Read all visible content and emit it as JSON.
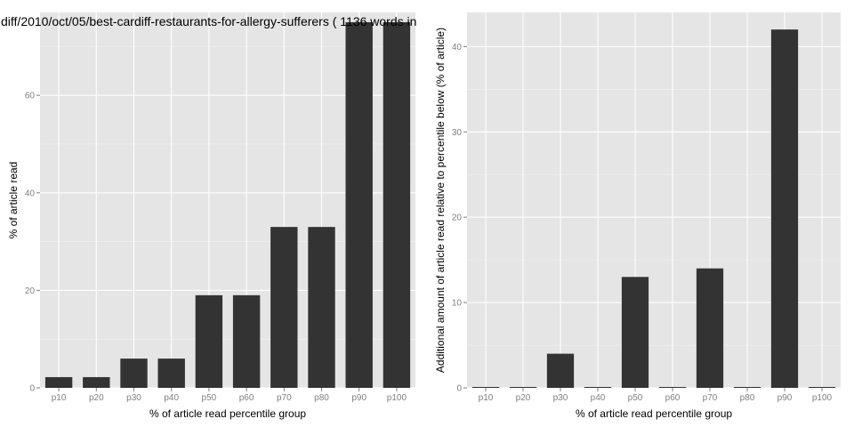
{
  "chart_data": [
    {
      "type": "bar",
      "title": "diff/2010/oct/05/best-cardiff-restaurants-for-allergy-sufferers ( 1136 words in",
      "xlabel": "% of article read percentile group",
      "ylabel": "% of article read",
      "categories": [
        "p10",
        "p20",
        "p30",
        "p40",
        "p50",
        "p60",
        "p70",
        "p80",
        "p90",
        "p100"
      ],
      "values": [
        2.2,
        2.2,
        6,
        6,
        19,
        19,
        33,
        33,
        75,
        75
      ],
      "ylim": [
        0,
        77
      ],
      "yticks": [
        0,
        20,
        40,
        60
      ],
      "grid": true,
      "bar_color": "#333333",
      "panel_color": "#e5e5e5"
    },
    {
      "type": "bar",
      "title": "",
      "xlabel": "% of article read percentile group",
      "ylabel": "Additional amount of article read relative to percentile below (% of article)",
      "categories": [
        "p10",
        "p20",
        "p30",
        "p40",
        "p50",
        "p60",
        "p70",
        "p80",
        "p90",
        "p100"
      ],
      "values": [
        0,
        0,
        4,
        0,
        13,
        0,
        14,
        0,
        42,
        0
      ],
      "ylim": [
        0,
        44
      ],
      "yticks": [
        0,
        10,
        20,
        30,
        40
      ],
      "grid": true,
      "bar_color": "#333333",
      "panel_color": "#e5e5e5"
    }
  ]
}
